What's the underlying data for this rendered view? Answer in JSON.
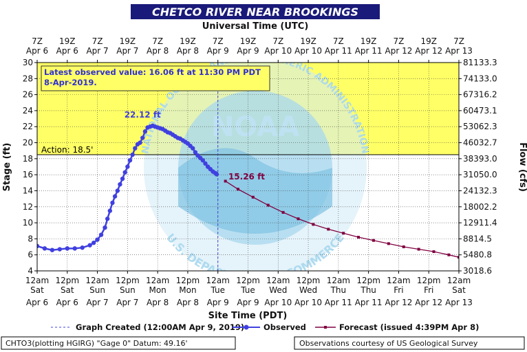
{
  "chart_data": {
    "type": "line",
    "title": "CHETCO RIVER NEAR BROOKINGS",
    "top_axis_label": "Universal Time (UTC)",
    "xlabel": "Site Time (PDT)",
    "ylabel": "Stage (ft)",
    "y2label": "Flow (cfs)",
    "ylim": [
      4,
      30
    ],
    "x_unit": "hours after 12am Sat Apr 6 (PDT)",
    "xlim": [
      0,
      168
    ],
    "y_ticks": [
      4,
      6,
      8,
      10,
      12,
      14,
      16,
      18,
      20,
      22,
      24,
      26,
      28,
      30
    ],
    "flow_ticks": [
      "3018.6",
      "5480.8",
      "8814.5",
      "12911.4",
      "18002.2",
      "24132.3",
      "31050.0",
      "38393.0",
      "46032.7",
      "53062.3",
      "60473.1",
      "67316.2",
      "74133.0",
      "81133.3"
    ],
    "bottom_ticks": [
      {
        "t1": "12am",
        "t2": "Sat",
        "t3": "Apr 6"
      },
      {
        "t1": "12pm",
        "t2": "Sat",
        "t3": "Apr 6"
      },
      {
        "t1": "12am",
        "t2": "Sun",
        "t3": "Apr 7"
      },
      {
        "t1": "12pm",
        "t2": "Sun",
        "t3": "Apr 7"
      },
      {
        "t1": "12am",
        "t2": "Mon",
        "t3": "Apr 8"
      },
      {
        "t1": "12pm",
        "t2": "Mon",
        "t3": "Apr 8"
      },
      {
        "t1": "12am",
        "t2": "Tue",
        "t3": "Apr 9"
      },
      {
        "t1": "12pm",
        "t2": "Tue",
        "t3": "Apr 9"
      },
      {
        "t1": "12am",
        "t2": "Wed",
        "t3": "Apr 10"
      },
      {
        "t1": "12pm",
        "t2": "Wed",
        "t3": "Apr 10"
      },
      {
        "t1": "12am",
        "t2": "Thu",
        "t3": "Apr 11"
      },
      {
        "t1": "12pm",
        "t2": "Thu",
        "t3": "Apr 11"
      },
      {
        "t1": "12am",
        "t2": "Fri",
        "t3": "Apr 12"
      },
      {
        "t1": "12pm",
        "t2": "Fri",
        "t3": "Apr 12"
      },
      {
        "t1": "12am",
        "t2": "Sat",
        "t3": "Apr 13"
      }
    ],
    "top_ticks": [
      {
        "t1": "7Z",
        "t2": "Apr 6"
      },
      {
        "t1": "19Z",
        "t2": "Apr 6"
      },
      {
        "t1": "7Z",
        "t2": "Apr 7"
      },
      {
        "t1": "19Z",
        "t2": "Apr 7"
      },
      {
        "t1": "7Z",
        "t2": "Apr 8"
      },
      {
        "t1": "19Z",
        "t2": "Apr 8"
      },
      {
        "t1": "7Z",
        "t2": "Apr 9"
      },
      {
        "t1": "19Z",
        "t2": "Apr 9"
      },
      {
        "t1": "7Z",
        "t2": "Apr 10"
      },
      {
        "t1": "19Z",
        "t2": "Apr 10"
      },
      {
        "t1": "7Z",
        "t2": "Apr 11"
      },
      {
        "t1": "19Z",
        "t2": "Apr 11"
      },
      {
        "t1": "7Z",
        "t2": "Apr 12"
      },
      {
        "t1": "19Z",
        "t2": "Apr 12"
      },
      {
        "t1": "7Z",
        "t2": "Apr 13"
      }
    ],
    "action": {
      "label": "Action: 18.5'",
      "value": 18.5
    },
    "graph_created": {
      "x": 72,
      "label": "Graph Created (12:00AM Apr 9, 2019)"
    },
    "callout": "Latest observed value: 16.06 ft at 11:30 PM PDT 8-Apr-2019.",
    "annotations": [
      {
        "text": "22.12 ft",
        "x": 42,
        "y": 22.12,
        "series": "Observed"
      },
      {
        "text": "15.26 ft",
        "x": 77,
        "y": 15.26,
        "series": "Forecast"
      }
    ],
    "watermark": "NOAA",
    "watermark_text_top": "NATIONAL OCEANIC AND ATMOSPHERIC ADMINISTRATION",
    "watermark_text_bottom": "U.S. DEPARTMENT OF COMMERCE",
    "series": [
      {
        "name": "Observed",
        "color": "#4040e0",
        "x": [
          0,
          3,
          6,
          9,
          12,
          15,
          18,
          21,
          22.5,
          24,
          25.5,
          27,
          28,
          29,
          30,
          31,
          32,
          33,
          34,
          35,
          36,
          37,
          38,
          39,
          40,
          41,
          42,
          43,
          44,
          45,
          46,
          47,
          48,
          49,
          50,
          51,
          52,
          53,
          54,
          55,
          56,
          57,
          58,
          59,
          60,
          61,
          62,
          63,
          64,
          65,
          66,
          67,
          68,
          69,
          70,
          71,
          71.5
        ],
        "y": [
          7.1,
          6.8,
          6.6,
          6.7,
          6.8,
          6.8,
          6.9,
          7.2,
          7.5,
          7.9,
          8.5,
          9.4,
          10.5,
          11.5,
          12.5,
          13.3,
          14.0,
          14.8,
          15.5,
          16.3,
          17.0,
          17.8,
          18.5,
          19.3,
          19.8,
          20.0,
          20.6,
          21.4,
          21.9,
          22.0,
          22.12,
          22.0,
          21.9,
          21.8,
          21.7,
          21.5,
          21.3,
          21.2,
          21.0,
          20.8,
          20.6,
          20.5,
          20.3,
          20.1,
          19.9,
          19.6,
          19.3,
          18.8,
          18.4,
          18.1,
          17.8,
          17.4,
          17.0,
          16.7,
          16.4,
          16.2,
          16.06
        ]
      },
      {
        "name": "Forecast (issued 4:39PM Apr 8)",
        "color": "#800040",
        "x": [
          75,
          80,
          86,
          92,
          98,
          104,
          110,
          116,
          122,
          128,
          134,
          140,
          146,
          152,
          158,
          164,
          168
        ],
        "y": [
          15.2,
          14.2,
          13.2,
          12.2,
          11.3,
          10.5,
          9.8,
          9.2,
          8.7,
          8.2,
          7.8,
          7.4,
          7.0,
          6.7,
          6.4,
          6.0,
          5.7
        ]
      }
    ],
    "legend": {
      "position": "bottom",
      "graph_created": "Graph Created (12:00AM Apr 9, 2019)",
      "observed": "Observed",
      "forecast": "Forecast (issued 4:39PM Apr 8)"
    }
  },
  "footer": {
    "left": "CHTO3(plotting HGIRG) \"Gage 0\" Datum: 49.16'",
    "right": "Observations courtesy of US Geological Survey"
  },
  "colors": {
    "title_bg": "#1a1a7a",
    "title_text": "#ffffff",
    "action_fill": "#ffff66",
    "plot_bg": "#ffffff",
    "watermark": "#a8d8ee"
  }
}
